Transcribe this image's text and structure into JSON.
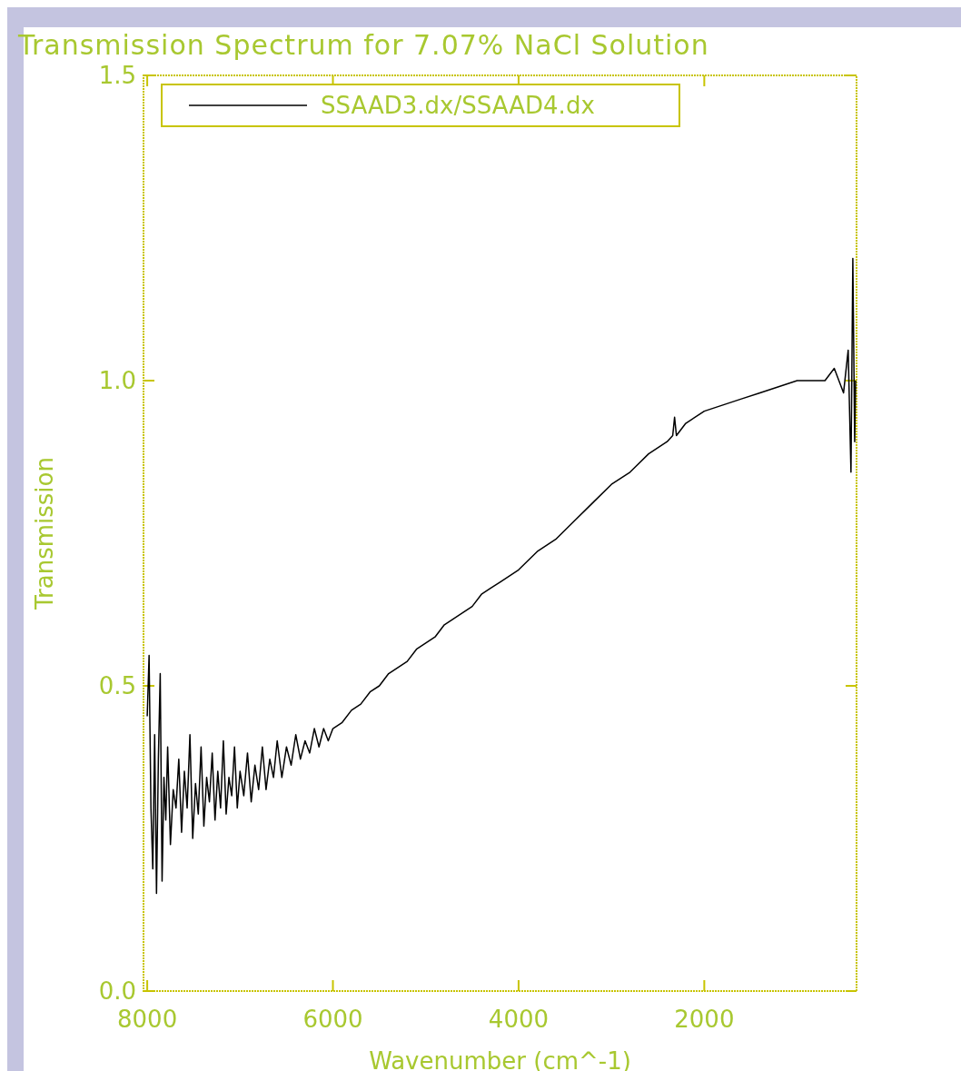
{
  "chart_data": {
    "type": "line",
    "title": "Transmission Spectrum for 7.07% NaCl Solution",
    "xlabel": "Wavenumber (cm^-1)",
    "ylabel": "Transmission",
    "xlim": [
      8040,
      360
    ],
    "xticks": [
      8000,
      6000,
      4000,
      2000
    ],
    "ylim": [
      0,
      1.5
    ],
    "yticks": [
      {
        "value": 0,
        "label": "0.0"
      },
      {
        "value": 0.5,
        "label": "0.5"
      },
      {
        "value": 1,
        "label": "1.0"
      },
      {
        "value": 1.5,
        "label": "1.5"
      }
    ],
    "grid": false,
    "legend": "top left",
    "marker": "none",
    "line_style": "solid",
    "series": [
      {
        "name": "SSAAD3.dx/SSAAD4.dx",
        "color": "#000000",
        "x": [
          8000,
          7980,
          7960,
          7940,
          7920,
          7900,
          7880,
          7860,
          7840,
          7820,
          7800,
          7780,
          7750,
          7720,
          7690,
          7660,
          7630,
          7600,
          7570,
          7540,
          7510,
          7480,
          7450,
          7420,
          7390,
          7360,
          7330,
          7300,
          7270,
          7240,
          7210,
          7180,
          7150,
          7120,
          7090,
          7060,
          7030,
          7000,
          6960,
          6920,
          6880,
          6840,
          6800,
          6760,
          6720,
          6680,
          6640,
          6600,
          6550,
          6500,
          6450,
          6400,
          6350,
          6300,
          6250,
          6200,
          6150,
          6100,
          6050,
          6000,
          5900,
          5800,
          5700,
          5600,
          5500,
          5400,
          5300,
          5200,
          5100,
          5000,
          4900,
          4800,
          4700,
          4600,
          4500,
          4400,
          4300,
          4200,
          4100,
          4000,
          3800,
          3600,
          3400,
          3200,
          3000,
          2800,
          2600,
          2400,
          2340,
          2320,
          2300,
          2200,
          2000,
          1800,
          1600,
          1400,
          1200,
          1000,
          800,
          700,
          600,
          500,
          450,
          420,
          400,
          380,
          370
        ],
        "values": [
          0.45,
          0.55,
          0.3,
          0.2,
          0.42,
          0.16,
          0.38,
          0.52,
          0.18,
          0.35,
          0.28,
          0.4,
          0.24,
          0.33,
          0.3,
          0.38,
          0.26,
          0.36,
          0.3,
          0.42,
          0.25,
          0.34,
          0.29,
          0.4,
          0.27,
          0.35,
          0.31,
          0.39,
          0.28,
          0.36,
          0.3,
          0.41,
          0.29,
          0.35,
          0.32,
          0.4,
          0.3,
          0.36,
          0.32,
          0.39,
          0.31,
          0.37,
          0.33,
          0.4,
          0.33,
          0.38,
          0.35,
          0.41,
          0.35,
          0.4,
          0.37,
          0.42,
          0.38,
          0.41,
          0.39,
          0.43,
          0.4,
          0.43,
          0.41,
          0.43,
          0.44,
          0.46,
          0.47,
          0.49,
          0.5,
          0.52,
          0.53,
          0.54,
          0.56,
          0.57,
          0.58,
          0.6,
          0.61,
          0.62,
          0.63,
          0.65,
          0.66,
          0.67,
          0.68,
          0.69,
          0.72,
          0.74,
          0.77,
          0.8,
          0.83,
          0.85,
          0.88,
          0.9,
          0.91,
          0.94,
          0.91,
          0.93,
          0.95,
          0.96,
          0.97,
          0.98,
          0.99,
          1.0,
          1.0,
          1.0,
          1.02,
          0.98,
          1.05,
          0.85,
          1.2,
          0.9,
          1.0
        ]
      }
    ]
  }
}
